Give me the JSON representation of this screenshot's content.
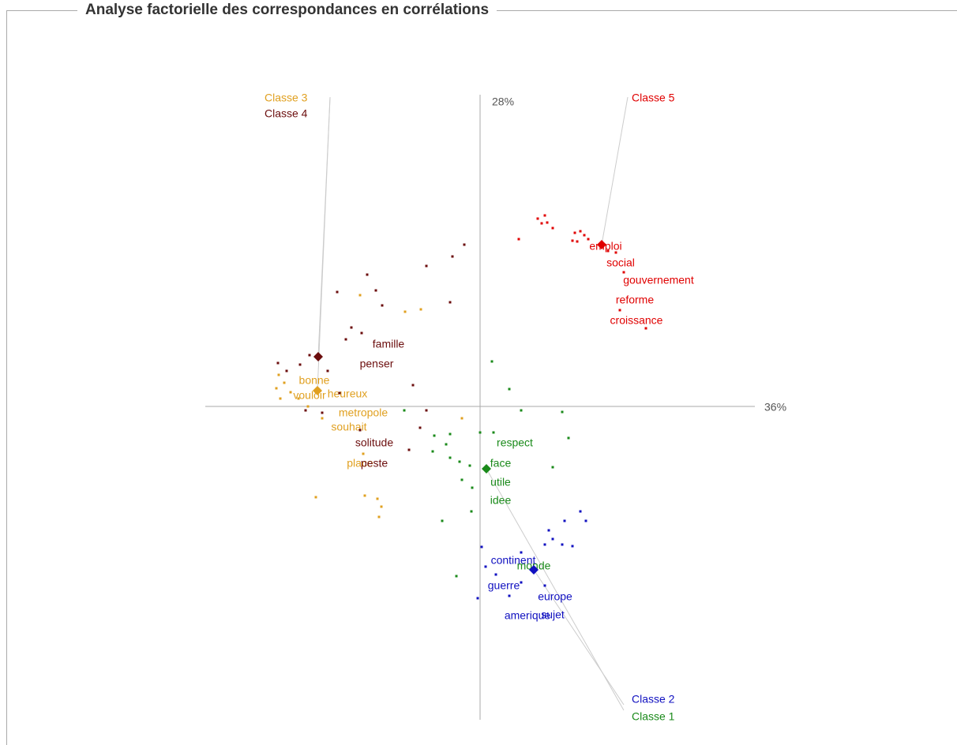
{
  "panel_title": "Analyse factorielle des correspondances en corrélations",
  "chart_data": {
    "type": "scatter",
    "x_label": "36%",
    "y_label": "28%",
    "xlim": [
      -350,
      350
    ],
    "ylim": [
      -400,
      400
    ],
    "series": [
      {
        "name": "Classe 1",
        "color": "#1a8a1a",
        "center": [
          8,
          -79
        ],
        "x": [
          15,
          37,
          52,
          104,
          112,
          -96,
          -58,
          -38,
          -60,
          -43,
          0,
          17,
          -38,
          -26,
          -13,
          -23,
          -10,
          92,
          -48,
          -11,
          -30
        ],
        "y": [
          57,
          22,
          -5,
          -7,
          -40,
          -5,
          -37,
          -35,
          -57,
          -48,
          -33,
          -33,
          -65,
          -70,
          -75,
          -93,
          -103,
          -77,
          -145,
          -133,
          -215
        ],
        "words": [
          {
            "label": "respect",
            "x": 44,
            "y": -47
          },
          {
            "label": "face",
            "x": 26,
            "y": -73
          },
          {
            "label": "utile",
            "x": 26,
            "y": -97
          },
          {
            "label": "idee",
            "x": 26,
            "y": -120
          },
          {
            "label": "monde",
            "x": 68,
            "y": -203
          }
        ]
      },
      {
        "name": "Classe 2",
        "color": "#1010c0",
        "center": [
          68,
          -207
        ],
        "x": [
          127,
          134,
          107,
          87,
          92,
          104,
          117,
          82,
          52,
          2,
          7,
          20,
          52,
          82,
          -3,
          37
        ],
        "y": [
          -133,
          -145,
          -145,
          -157,
          -168,
          -175,
          -177,
          -175,
          -185,
          -178,
          -203,
          -213,
          -223,
          -227,
          -243,
          -240
        ],
        "words": [
          {
            "label": "continent",
            "x": 42,
            "y": -196
          },
          {
            "label": "guerre",
            "x": 30,
            "y": -228
          },
          {
            "label": "europe",
            "x": 95,
            "y": -242
          },
          {
            "label": "sujet",
            "x": 92,
            "y": -265
          },
          {
            "label": "amerique",
            "x": 60,
            "y": -266
          }
        ]
      },
      {
        "name": "Classe 3",
        "color": "#e0a020",
        "center": [
          -206,
          20
        ],
        "x": [
          -95,
          -75,
          -152,
          -255,
          -248,
          -258,
          -240,
          -253,
          -230,
          -218,
          -200,
          -208,
          -146,
          -130,
          -125,
          -128,
          -23,
          -148
        ],
        "y": [
          120,
          123,
          141,
          40,
          30,
          23,
          18,
          10,
          10,
          0,
          -15,
          -115,
          -113,
          -117,
          -127,
          -140,
          -15,
          -60
        ],
        "words": [
          {
            "label": "bonne",
            "x": -210,
            "y": 32
          },
          {
            "label": "vouloir",
            "x": -216,
            "y": 13
          },
          {
            "label": "heureux",
            "x": -168,
            "y": 15
          },
          {
            "label": "metropole",
            "x": -148,
            "y": -9
          },
          {
            "label": "souhait",
            "x": -166,
            "y": -27
          },
          {
            "label": "place",
            "x": -152,
            "y": -73
          }
        ]
      },
      {
        "name": "Classe 4",
        "color": "#6b0d0d",
        "center": [
          -205,
          63
        ],
        "x": [
          -20,
          -35,
          -68,
          -143,
          -132,
          -181,
          -124,
          -38,
          -163,
          -150,
          -170,
          -216,
          -228,
          -256,
          -245,
          -193,
          -85,
          -178,
          -221,
          -200,
          -68,
          -76,
          -90,
          -152
        ],
        "y": [
          205,
          190,
          178,
          167,
          147,
          145,
          128,
          132,
          100,
          93,
          85,
          65,
          53,
          55,
          45,
          45,
          27,
          17,
          -5,
          -8,
          -5,
          -27,
          -55,
          -30
        ],
        "words": [
          {
            "label": "famille",
            "x": -116,
            "y": 78
          },
          {
            "label": "penser",
            "x": -131,
            "y": 53
          },
          {
            "label": "solitude",
            "x": -134,
            "y": -47
          },
          {
            "label": "peste",
            "x": -134,
            "y": -73
          }
        ]
      },
      {
        "name": "Classe 5",
        "color": "#e00000",
        "center": [
          154,
          205
        ],
        "x": [
          73,
          82,
          85,
          78,
          92,
          120,
          127,
          132,
          117,
          123,
          137,
          49,
          162,
          172,
          182,
          210,
          177
        ],
        "y": [
          238,
          242,
          233,
          232,
          226,
          220,
          222,
          217,
          210,
          209,
          212,
          212,
          197,
          195,
          170,
          99,
          122
        ],
        "words": [
          {
            "label": "emploi",
            "x": 159,
            "y": 202
          },
          {
            "label": "social",
            "x": 178,
            "y": 181
          },
          {
            "label": "gouvernement",
            "x": 226,
            "y": 159
          },
          {
            "label": "reforme",
            "x": 196,
            "y": 134
          },
          {
            "label": "croissance",
            "x": 198,
            "y": 108
          }
        ]
      }
    ]
  }
}
